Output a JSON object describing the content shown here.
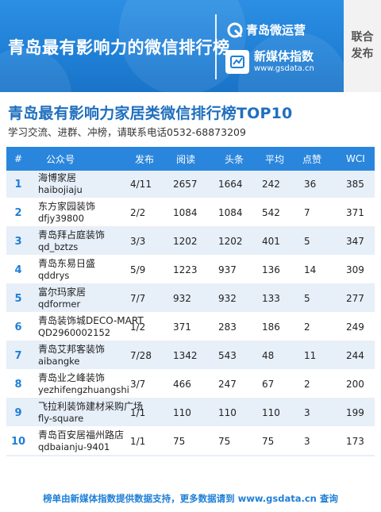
{
  "banner": {
    "title": "青岛最有影响力的微信排行榜",
    "brand1": "青岛微运营",
    "brand2_name": "新媒体指数",
    "brand2_url": "www.gsdata.cn",
    "side": [
      "联合",
      "发布"
    ],
    "colors": {
      "background": "#1f7fd6",
      "text": "#ffffff",
      "side_panel": "#f2f2f2"
    }
  },
  "heading": {
    "title": "青岛最有影响力家居类微信排行榜TOP10",
    "subtitle": "学习交流、进群、冲榜，请联系电话0532-68873209"
  },
  "table": {
    "columns": [
      "#",
      "公众号",
      "发布",
      "阅读",
      "头条",
      "平均",
      "点赞",
      "WCI"
    ],
    "rows": [
      {
        "rank": "1",
        "name": "海博家居",
        "id": "haibojiaju",
        "pub": "4/11",
        "read": "2657",
        "head": "1664",
        "avg": "242",
        "like": "36",
        "wci": "385"
      },
      {
        "rank": "2",
        "name": "东方家园装饰",
        "id": "dfjy39800",
        "pub": "2/2",
        "read": "1084",
        "head": "1084",
        "avg": "542",
        "like": "7",
        "wci": "371"
      },
      {
        "rank": "3",
        "name": "青岛拜占庭装饰",
        "id": "qd_bztzs",
        "pub": "3/3",
        "read": "1202",
        "head": "1202",
        "avg": "401",
        "like": "5",
        "wci": "347"
      },
      {
        "rank": "4",
        "name": "青岛东易日盛",
        "id": "qddrys",
        "pub": "5/9",
        "read": "1223",
        "head": "937",
        "avg": "136",
        "like": "14",
        "wci": "309"
      },
      {
        "rank": "5",
        "name": "富尔玛家居",
        "id": "qdformer",
        "pub": "7/7",
        "read": "932",
        "head": "932",
        "avg": "133",
        "like": "5",
        "wci": "277"
      },
      {
        "rank": "6",
        "name": "青岛装饰城DECO-MART",
        "id": "QD2960002152",
        "pub": "1/2",
        "read": "371",
        "head": "283",
        "avg": "186",
        "like": "2",
        "wci": "249"
      },
      {
        "rank": "7",
        "name": "青岛艾邦客装饰",
        "id": "aibangke",
        "pub": "7/28",
        "read": "1342",
        "head": "543",
        "avg": "48",
        "like": "11",
        "wci": "244"
      },
      {
        "rank": "8",
        "name": "青岛业之峰装饰",
        "id": "yezhifengzhuangshi",
        "pub": "3/7",
        "read": "466",
        "head": "247",
        "avg": "67",
        "like": "2",
        "wci": "200"
      },
      {
        "rank": "9",
        "name": "飞拉利装饰建材采购广场",
        "id": "fly-square",
        "pub": "1/1",
        "read": "110",
        "head": "110",
        "avg": "110",
        "like": "3",
        "wci": "199"
      },
      {
        "rank": "10",
        "name": "青岛百安居福州路店",
        "id": "qdbaianju-9401",
        "pub": "1/1",
        "read": "75",
        "head": "75",
        "avg": "75",
        "like": "3",
        "wci": "173"
      }
    ],
    "colors": {
      "header": "#2a86dc",
      "row_shaded": "#e7eff9",
      "row_plain": "#ffffff",
      "rank": "#1f7fd6"
    }
  },
  "footer": {
    "text": "榜单由新媒体指数提供数据支持，更多数据请到 www.gsdata.cn 查询"
  }
}
